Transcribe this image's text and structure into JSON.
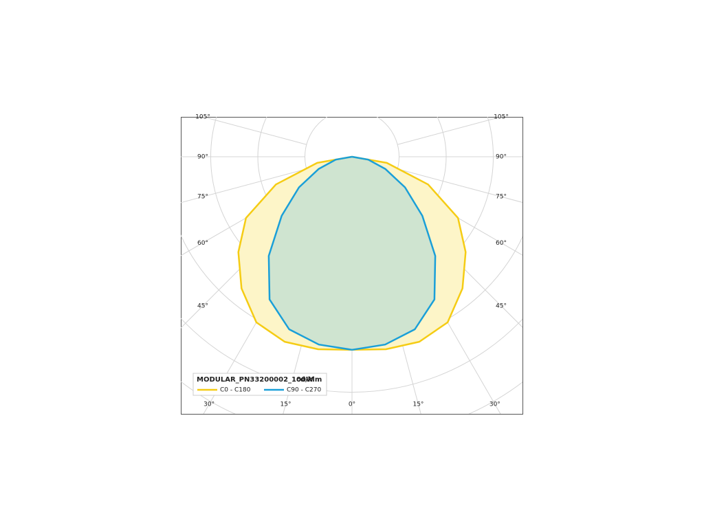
{
  "chart_data": {
    "type": "polar",
    "title": "MODULAR_PN33200002_100W",
    "unit": "cd/klm",
    "angles": [
      0,
      10,
      20,
      30,
      40,
      50,
      60,
      70,
      80,
      90
    ],
    "series": [
      {
        "name": "C0 - C180",
        "color": "#f5cc14",
        "fill": "#fdf5c8",
        "values": [
          4.1,
          4.15,
          4.18,
          4.06,
          3.65,
          3.15,
          2.6,
          1.72,
          0.75,
          0
        ]
      },
      {
        "name": "C90 - C270",
        "color": "#1a9fd8",
        "fill": "#cfe4d0",
        "values": [
          4.1,
          4.05,
          3.9,
          3.5,
          2.75,
          1.95,
          1.3,
          0.75,
          0.35,
          0
        ]
      }
    ],
    "rlim": [
      0,
      6
    ],
    "rticks": [
      1,
      2,
      3,
      4,
      5,
      6
    ],
    "thetaticks": [
      {
        "value": 0,
        "label": "0°"
      },
      {
        "value": 15,
        "label": "15°"
      },
      {
        "value": 30,
        "label": "30°"
      },
      {
        "value": 45,
        "label": "45°"
      },
      {
        "value": 60,
        "label": "60°"
      },
      {
        "value": 75,
        "label": "75°"
      },
      {
        "value": 90,
        "label": "90°"
      },
      {
        "value": 105,
        "label": "105°"
      }
    ],
    "grid": true
  }
}
